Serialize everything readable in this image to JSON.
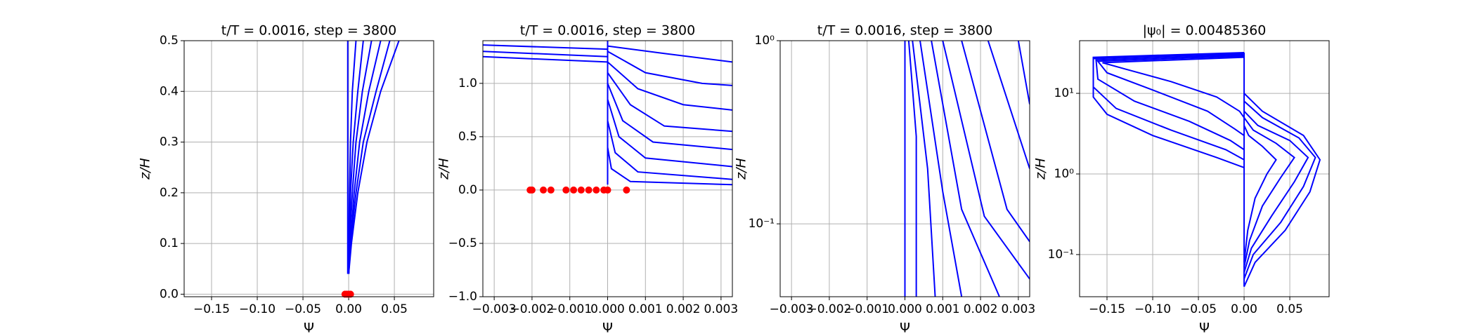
{
  "chart_data": [
    {
      "type": "line",
      "title": "t/T = 0.0016, step = 3800",
      "xlabel": "Ψ",
      "ylabel": "z/H",
      "grid": true,
      "ylog": false,
      "xlim": [
        -0.18,
        0.093
      ],
      "ylim": [
        -0.005,
        0.5
      ],
      "xticks": [
        {
          "value": -0.15,
          "label": "−0.15"
        },
        {
          "value": -0.1,
          "label": "−0.10"
        },
        {
          "value": -0.05,
          "label": "−0.05"
        },
        {
          "value": 0,
          "label": "0.00"
        },
        0.05
      ],
      "yticks": [
        {
          "value": 0,
          "label": "0.0"
        },
        0.1,
        0.2,
        0.3,
        0.4,
        0.5
      ],
      "series": [
        {
          "color": "#0000ff",
          "x": [
            0.0,
            0.003,
            0.01,
            0.02,
            0.035,
            0.055
          ],
          "values": [
            0.04,
            0.1,
            0.2,
            0.3,
            0.4,
            0.5
          ]
        },
        {
          "color": "#0000ff",
          "x": [
            0.0,
            0.002,
            0.008,
            0.016,
            0.03,
            0.045
          ],
          "values": [
            0.04,
            0.1,
            0.2,
            0.3,
            0.4,
            0.5
          ]
        },
        {
          "color": "#0000ff",
          "x": [
            0.0,
            0.002,
            0.006,
            0.012,
            0.022,
            0.035
          ],
          "values": [
            0.04,
            0.1,
            0.2,
            0.3,
            0.4,
            0.5
          ]
        },
        {
          "color": "#0000ff",
          "x": [
            0.0,
            0.001,
            0.004,
            0.008,
            0.015,
            0.025
          ],
          "values": [
            0.04,
            0.1,
            0.2,
            0.3,
            0.4,
            0.5
          ]
        },
        {
          "color": "#0000ff",
          "x": [
            0.0,
            0.001,
            0.002,
            0.005,
            0.01,
            0.016
          ],
          "values": [
            0.04,
            0.1,
            0.2,
            0.3,
            0.4,
            0.5
          ]
        },
        {
          "color": "#0000ff",
          "x": [
            0.0,
            0.0,
            0.001,
            0.002,
            0.004,
            0.008
          ],
          "values": [
            0.04,
            0.1,
            0.2,
            0.3,
            0.4,
            0.5
          ]
        },
        {
          "color": "#0000ff",
          "x": [
            -0.001,
            -0.001,
            -0.001,
            -0.001,
            -0.001,
            -0.001
          ],
          "values": [
            0.04,
            0.1,
            0.2,
            0.3,
            0.4,
            0.5
          ]
        },
        {
          "color": "#ff0000",
          "marker": "o",
          "x": [
            -0.004,
            -0.002,
            0.0,
            0.002
          ],
          "values": [
            0,
            0,
            0,
            0
          ]
        }
      ]
    },
    {
      "type": "line",
      "title": "t/T = 0.0016, step = 3800",
      "xlabel": "Ψ",
      "ylabel": "z/H",
      "grid": true,
      "ylog": false,
      "xlim": [
        -0.0033,
        0.0033
      ],
      "ylim": [
        -1.0,
        1.4
      ],
      "xticks": [
        {
          "value": -0.003,
          "label": "−0.003"
        },
        {
          "value": -0.002,
          "label": "−0.002"
        },
        {
          "value": -0.001,
          "label": "−0.001"
        },
        {
          "value": 0,
          "label": "0.000"
        },
        0.001,
        0.002,
        0.003
      ],
      "yticks": [
        {
          "value": -1.0,
          "label": "−1.0"
        },
        {
          "value": -0.5,
          "label": "−0.5"
        },
        {
          "value": 0,
          "label": "0.0"
        },
        0.5,
        {
          "value": 1.0,
          "label": "1.0"
        }
      ],
      "series": [
        {
          "color": "#0000ff",
          "x": [
            -0.0033,
            0.0
          ],
          "values": [
            1.25,
            1.2
          ]
        },
        {
          "color": "#0000ff",
          "x": [
            -0.0033,
            0.0
          ],
          "values": [
            1.3,
            1.25
          ]
        },
        {
          "color": "#0000ff",
          "x": [
            -0.0033,
            0.0
          ],
          "values": [
            1.36,
            1.32
          ]
        },
        {
          "color": "#0000ff",
          "x": [
            0.0,
            0.0,
            0.0
          ],
          "values": [
            0.05,
            0.7,
            1.4
          ]
        },
        {
          "color": "#0000ff",
          "x": [
            0.0,
            0.0015,
            0.0033
          ],
          "values": [
            1.35,
            1.28,
            1.2
          ]
        },
        {
          "color": "#0000ff",
          "x": [
            0.0,
            0.001,
            0.0025,
            0.0033
          ],
          "values": [
            1.3,
            1.1,
            1.0,
            0.98
          ]
        },
        {
          "color": "#0000ff",
          "x": [
            0.0,
            0.0008,
            0.002,
            0.0033
          ],
          "values": [
            1.2,
            0.95,
            0.8,
            0.75
          ]
        },
        {
          "color": "#0000ff",
          "x": [
            0.0,
            0.0006,
            0.0015,
            0.0033
          ],
          "values": [
            1.1,
            0.8,
            0.6,
            0.55
          ]
        },
        {
          "color": "#0000ff",
          "x": [
            0.0,
            0.0004,
            0.0012,
            0.0033
          ],
          "values": [
            1.0,
            0.65,
            0.45,
            0.38
          ]
        },
        {
          "color": "#0000ff",
          "x": [
            0.0,
            0.0003,
            0.001,
            0.0033
          ],
          "values": [
            0.85,
            0.5,
            0.3,
            0.22
          ]
        },
        {
          "color": "#0000ff",
          "x": [
            0.0,
            0.0002,
            0.0008,
            0.0033
          ],
          "values": [
            0.65,
            0.35,
            0.17,
            0.1
          ]
        },
        {
          "color": "#0000ff",
          "x": [
            0.0,
            0.0001,
            0.0006,
            0.0033
          ],
          "values": [
            0.4,
            0.2,
            0.08,
            0.05
          ]
        },
        {
          "color": "#ff0000",
          "marker": "o",
          "x": [
            -0.00205,
            -0.002,
            -0.0017,
            -0.0015,
            -0.0011,
            -0.0009,
            -0.0007,
            -0.0005,
            -0.0003,
            -0.0001,
            0.0,
            0.0005
          ],
          "values": [
            0,
            0,
            0,
            0,
            0,
            0,
            0,
            0,
            0,
            0,
            0,
            0
          ]
        }
      ]
    },
    {
      "type": "line",
      "title": "t/T = 0.0016, step = 3800",
      "xlabel": "Ψ",
      "ylabel": "z/H",
      "grid": true,
      "ylog": true,
      "xlim": [
        -0.0033,
        0.0033
      ],
      "ylim": [
        0.04,
        1.0
      ],
      "xticks": [
        {
          "value": -0.003,
          "label": "−0.003"
        },
        {
          "value": -0.002,
          "label": "−0.002"
        },
        {
          "value": -0.001,
          "label": "−0.001"
        },
        {
          "value": 0,
          "label": "0.000"
        },
        0.001,
        0.002,
        0.003
      ],
      "yticks": [
        {
          "value": 0.1,
          "label": "10⁻¹"
        },
        {
          "value": 1,
          "label": "10⁰"
        }
      ],
      "series": [
        {
          "color": "#0000ff",
          "x": [
            0.0,
            0.0
          ],
          "values": [
            0.04,
            1.0
          ]
        },
        {
          "color": "#0000ff",
          "x": [
            0.0003,
            0.0003,
            0.0001
          ],
          "values": [
            0.04,
            0.3,
            1.0
          ]
        },
        {
          "color": "#0000ff",
          "x": [
            0.0008,
            0.0006,
            0.0002
          ],
          "values": [
            0.04,
            0.2,
            1.0
          ]
        },
        {
          "color": "#0000ff",
          "x": [
            0.0015,
            0.001,
            0.0004
          ],
          "values": [
            0.04,
            0.15,
            1.0
          ]
        },
        {
          "color": "#0000ff",
          "x": [
            0.0025,
            0.0015,
            0.0007
          ],
          "values": [
            0.04,
            0.12,
            1.0
          ]
        },
        {
          "color": "#0000ff",
          "x": [
            0.0033,
            0.0021,
            0.001
          ],
          "values": [
            0.05,
            0.11,
            1.0
          ]
        },
        {
          "color": "#0000ff",
          "x": [
            0.0033,
            0.0027,
            0.0015
          ],
          "values": [
            0.08,
            0.12,
            1.0
          ]
        },
        {
          "color": "#0000ff",
          "x": [
            0.0033,
            0.0022
          ],
          "values": [
            0.2,
            1.0
          ]
        },
        {
          "color": "#0000ff",
          "x": [
            0.0033,
            0.003
          ],
          "values": [
            0.45,
            1.0
          ]
        }
      ]
    },
    {
      "type": "line",
      "title": "|ψ₀| = 0.00485360",
      "xlabel": "Ψ",
      "ylabel": "z/H",
      "grid": true,
      "ylog": true,
      "xlim": [
        -0.18,
        0.093
      ],
      "ylim": [
        0.03,
        45
      ],
      "xticks": [
        {
          "value": -0.15,
          "label": "−0.15"
        },
        {
          "value": -0.1,
          "label": "−0.10"
        },
        {
          "value": -0.05,
          "label": "−0.05"
        },
        {
          "value": 0,
          "label": "0.00"
        },
        0.05
      ],
      "yticks": [
        {
          "value": 0.1,
          "label": "10⁻¹"
        },
        {
          "value": 1,
          "label": "10⁰"
        },
        {
          "value": 10,
          "label": "10¹"
        }
      ],
      "series": [
        {
          "color": "#0000ff",
          "x": [
            0.0,
            -0.03,
            -0.1,
            -0.15,
            -0.165,
            -0.165,
            0.0
          ],
          "values": [
            1.2,
            1.6,
            3.0,
            5.5,
            9.0,
            28,
            32
          ]
        },
        {
          "color": "#0000ff",
          "x": [
            0.0,
            -0.02,
            -0.08,
            -0.14,
            -0.165,
            -0.165,
            0.0
          ],
          "values": [
            1.5,
            2.0,
            3.5,
            6.5,
            12,
            27,
            31
          ]
        },
        {
          "color": "#0000ff",
          "x": [
            0.0,
            -0.015,
            -0.06,
            -0.12,
            -0.16,
            -0.162,
            0.0
          ],
          "values": [
            2.0,
            2.6,
            4.5,
            8.0,
            15,
            26,
            30
          ]
        },
        {
          "color": "#0000ff",
          "x": [
            0.0,
            -0.01,
            -0.04,
            -0.1,
            -0.15,
            -0.16,
            0.0
          ],
          "values": [
            3.0,
            3.6,
            6.0,
            11,
            18,
            25,
            29
          ]
        },
        {
          "color": "#0000ff",
          "x": [
            0.0,
            -0.005,
            -0.03,
            -0.08,
            -0.13,
            -0.155,
            0.0
          ],
          "values": [
            5.0,
            6.0,
            9.0,
            14,
            20,
            24,
            28
          ]
        },
        {
          "color": "#0000ff",
          "x": [
            0.0,
            0.0,
            0.0
          ],
          "values": [
            0.04,
            1.0,
            32
          ]
        },
        {
          "color": "#0000ff",
          "x": [
            0.0,
            0.012,
            0.045,
            0.072,
            0.083,
            0.065,
            0.02,
            0.0
          ],
          "values": [
            0.04,
            0.08,
            0.2,
            0.6,
            1.5,
            3.0,
            6.0,
            10
          ]
        },
        {
          "color": "#0000ff",
          "x": [
            0.0,
            0.01,
            0.04,
            0.065,
            0.078,
            0.06,
            0.02,
            0.0
          ],
          "values": [
            0.05,
            0.1,
            0.25,
            0.7,
            1.6,
            2.8,
            5.0,
            8.0
          ]
        },
        {
          "color": "#0000ff",
          "x": [
            0.0,
            0.008,
            0.03,
            0.055,
            0.07,
            0.05,
            0.015,
            0.0
          ],
          "values": [
            0.06,
            0.12,
            0.3,
            0.8,
            1.6,
            2.6,
            4.0,
            6.0
          ]
        },
        {
          "color": "#0000ff",
          "x": [
            0.0,
            0.006,
            0.02,
            0.04,
            0.055,
            0.035,
            0.01,
            0.0
          ],
          "values": [
            0.07,
            0.15,
            0.4,
            0.9,
            1.6,
            2.4,
            3.5,
            5.0
          ]
        },
        {
          "color": "#0000ff",
          "x": [
            0.0,
            0.004,
            0.012,
            0.025,
            0.035,
            0.02,
            0.005,
            0.0
          ],
          "values": [
            0.08,
            0.2,
            0.5,
            1.0,
            1.5,
            2.2,
            3.0,
            4.0
          ]
        }
      ]
    }
  ]
}
